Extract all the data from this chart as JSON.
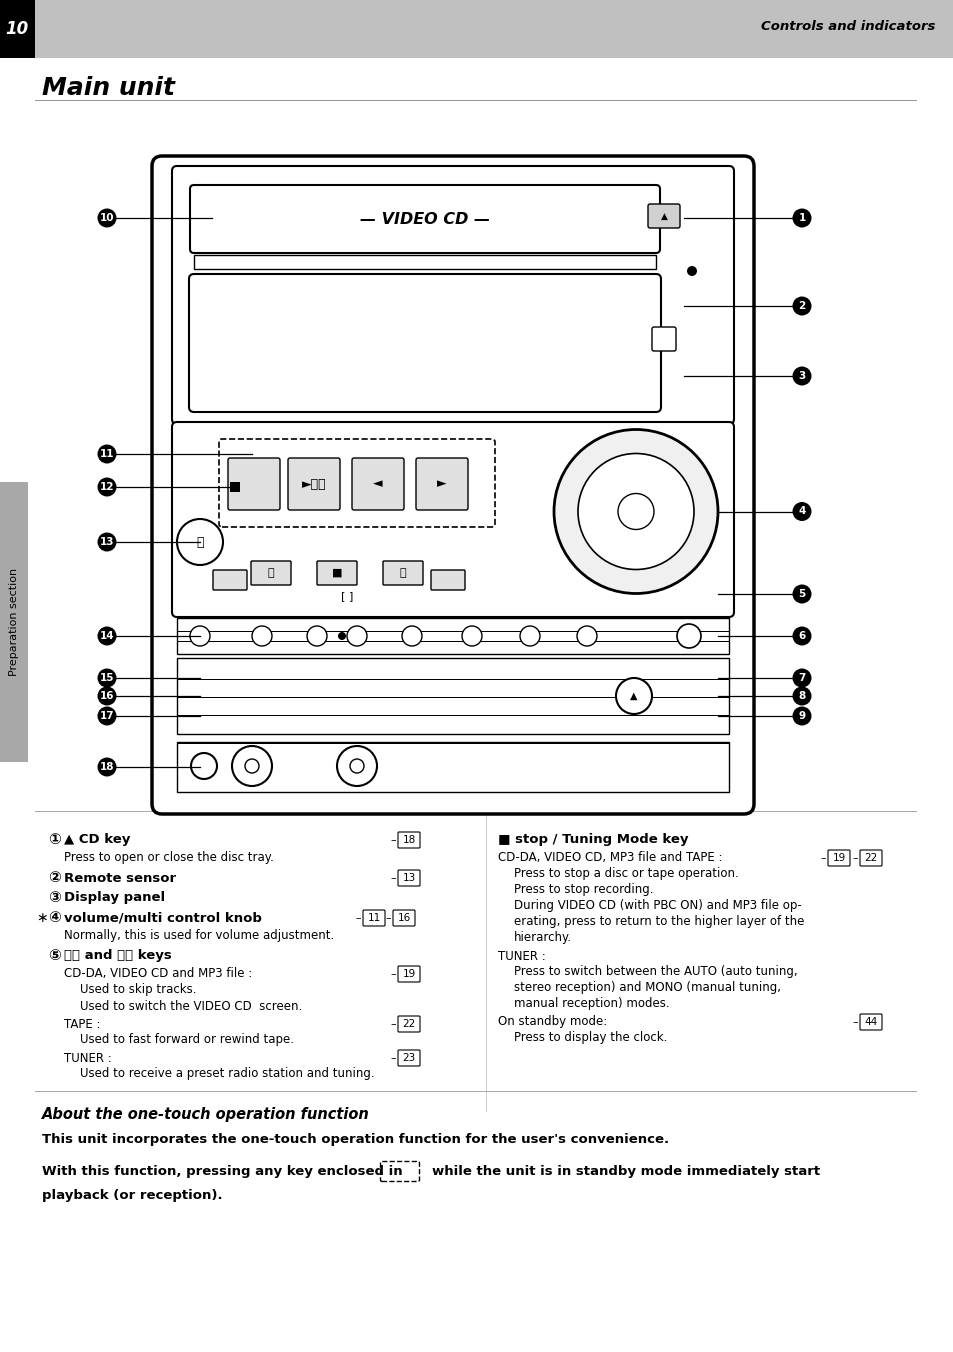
{
  "page_num": "10",
  "header_right": "Controls and indicators",
  "header_bg": "#c0c0c0",
  "main_title": "Main unit",
  "bg_color": "#ffffff",
  "sidebar_color": "#a8a8a8",
  "sidebar_text": "Preparation section",
  "section_title": "About the one-touch operation function",
  "section_text1": "This unit incorporates the one-touch operation function for the user's convenience.",
  "section_text2a": "With this function, pressing any key enclosed in",
  "section_text2b": "while the unit is in standby mode immediately start",
  "section_text3": "playback (or reception)."
}
